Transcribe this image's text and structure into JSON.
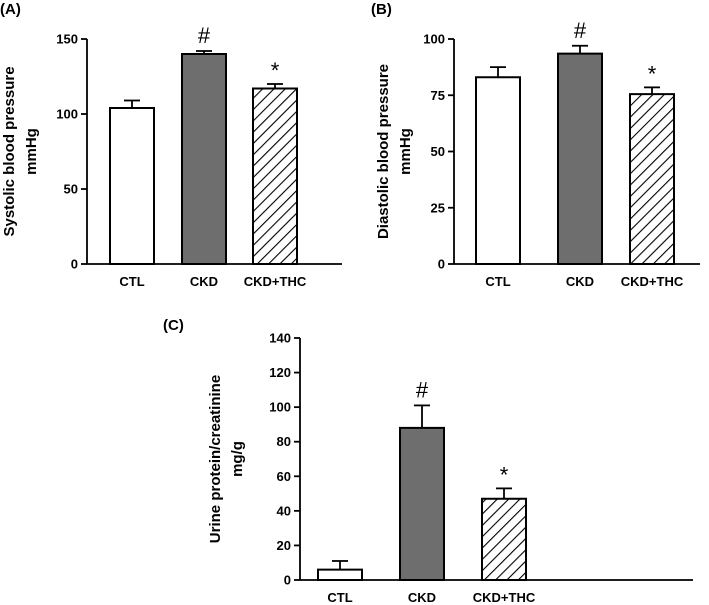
{
  "chart_data": [
    {
      "type": "bar",
      "panel_label": "(A)",
      "ylabel_line1": "Systolic blood pressure",
      "ylabel_line2": "mmHg",
      "categories": [
        "CTL",
        "CKD",
        "CKD+THC"
      ],
      "values": [
        104,
        140,
        117
      ],
      "errors": [
        5,
        2,
        3
      ],
      "significance": [
        "",
        "#",
        "*"
      ],
      "fills": [
        "white",
        "gray",
        "hatched"
      ],
      "ylim": [
        0,
        150
      ],
      "yticks": [
        0,
        50,
        100,
        150
      ]
    },
    {
      "type": "bar",
      "panel_label": "(B)",
      "ylabel_line1": "Diastolic blood pressure",
      "ylabel_line2": "mmHg",
      "categories": [
        "CTL",
        "CKD",
        "CKD+THC"
      ],
      "values": [
        83,
        93.5,
        75.5
      ],
      "errors": [
        4.5,
        3.5,
        3
      ],
      "significance": [
        "",
        "#",
        "*"
      ],
      "fills": [
        "white",
        "gray",
        "hatched"
      ],
      "ylim": [
        0,
        100
      ],
      "yticks": [
        0,
        25,
        50,
        75,
        100
      ]
    },
    {
      "type": "bar",
      "panel_label": "(C)",
      "ylabel_line1": "Urine protein/creatinine",
      "ylabel_line2": "mg/g",
      "categories": [
        "CTL",
        "CKD",
        "CKD+THC"
      ],
      "values": [
        6,
        88,
        47
      ],
      "errors": [
        5,
        13,
        6
      ],
      "significance": [
        "",
        "#",
        "*"
      ],
      "fills": [
        "white",
        "gray",
        "hatched"
      ],
      "ylim": [
        0,
        140
      ],
      "yticks": [
        0,
        20,
        40,
        60,
        80,
        100,
        120,
        140
      ]
    }
  ],
  "colors": {
    "gray_bar": "#6e6e6e",
    "outline": "#000000",
    "background": "#ffffff"
  }
}
